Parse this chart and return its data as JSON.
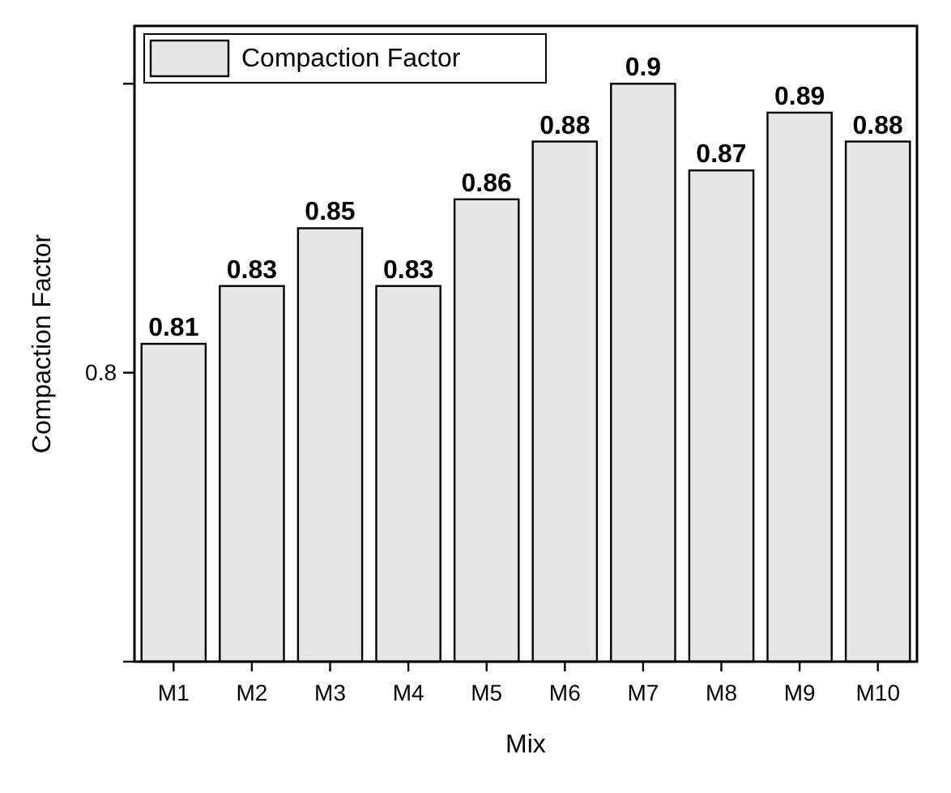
{
  "chart_data": {
    "type": "bar",
    "xlabel": "Mix",
    "ylabel": "Compaction Factor",
    "categories": [
      "M1",
      "M2",
      "M3",
      "M4",
      "M5",
      "M6",
      "M7",
      "M8",
      "M9",
      "M10"
    ],
    "series": [
      {
        "name": "Compaction Factor",
        "color": "#e6e6e6",
        "values": [
          0.81,
          0.83,
          0.85,
          0.83,
          0.86,
          0.88,
          0.9,
          0.87,
          0.89,
          0.88
        ]
      }
    ],
    "ylim": [
      0.7,
      0.92
    ],
    "yticks": [
      {
        "value": 0.7,
        "label": null
      },
      {
        "value": 0.8,
        "label": null
      },
      {
        "value": 0.9,
        "label": null
      }
    ],
    "annotations": [
      "0.8"
    ],
    "data_labels": true,
    "legend": "top left"
  }
}
